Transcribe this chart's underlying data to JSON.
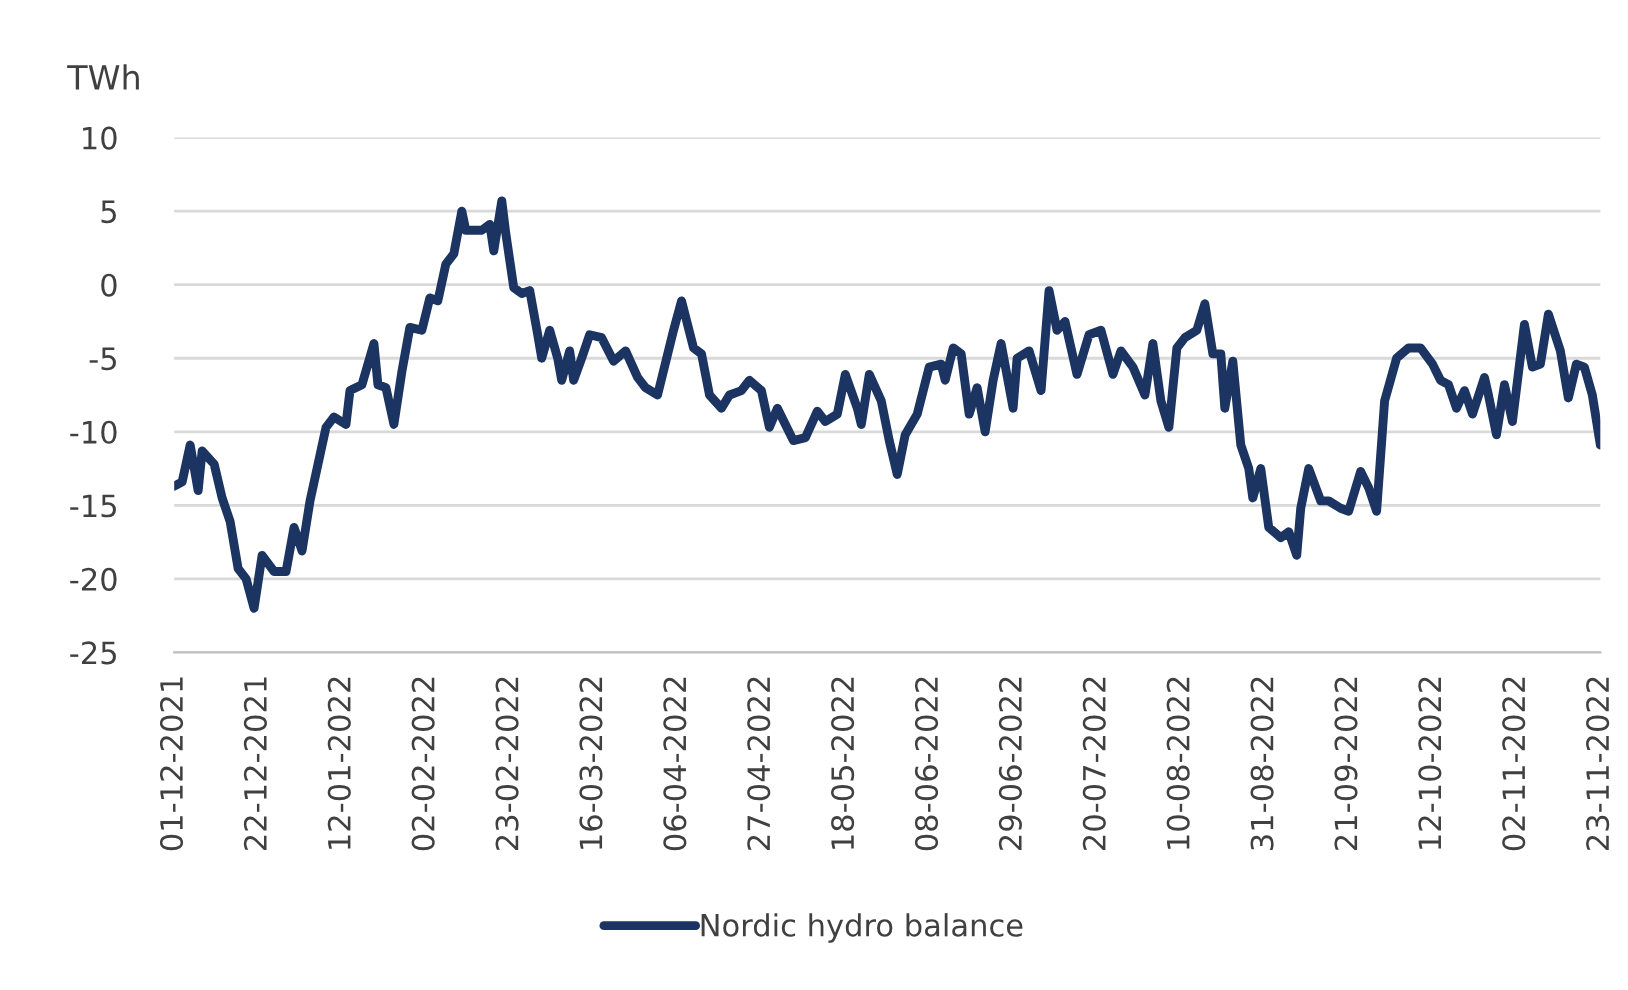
{
  "chart_data": {
    "type": "line",
    "ylabel": "TWh",
    "x": [
      "2021-12-01",
      "2021-12-03",
      "2021-12-05",
      "2021-12-07",
      "2021-12-08",
      "2021-12-11",
      "2021-12-13",
      "2021-12-15",
      "2021-12-17",
      "2021-12-19",
      "2021-12-21",
      "2021-12-23",
      "2021-12-26",
      "2021-12-29",
      "2021-12-31",
      "2022-01-02",
      "2022-01-04",
      "2022-01-08",
      "2022-01-10",
      "2022-01-13",
      "2022-01-14",
      "2022-01-17",
      "2022-01-20",
      "2022-01-21",
      "2022-01-23",
      "2022-01-25",
      "2022-01-27",
      "2022-01-29",
      "2022-02-01",
      "2022-02-03",
      "2022-02-05",
      "2022-02-07",
      "2022-02-09",
      "2022-02-11",
      "2022-02-12",
      "2022-02-16",
      "2022-02-18",
      "2022-02-19",
      "2022-02-21",
      "2022-02-22",
      "2022-02-24",
      "2022-02-26",
      "2022-02-28",
      "2022-03-02",
      "2022-03-03",
      "2022-03-05",
      "2022-03-07",
      "2022-03-08",
      "2022-03-10",
      "2022-03-11",
      "2022-03-13",
      "2022-03-15",
      "2022-03-18",
      "2022-03-21",
      "2022-03-24",
      "2022-03-27",
      "2022-03-29",
      "2022-04-01",
      "2022-04-05",
      "2022-04-07",
      "2022-04-10",
      "2022-04-12",
      "2022-04-14",
      "2022-04-17",
      "2022-04-19",
      "2022-04-22",
      "2022-04-24",
      "2022-04-27",
      "2022-04-29",
      "2022-05-01",
      "2022-05-03",
      "2022-05-05",
      "2022-05-08",
      "2022-05-11",
      "2022-05-13",
      "2022-05-16",
      "2022-05-18",
      "2022-05-21",
      "2022-05-22",
      "2022-05-24",
      "2022-05-27",
      "2022-05-29",
      "2022-05-31",
      "2022-06-02",
      "2022-06-05",
      "2022-06-08",
      "2022-06-11",
      "2022-06-12",
      "2022-06-14",
      "2022-06-16",
      "2022-06-18",
      "2022-06-20",
      "2022-06-22",
      "2022-06-24",
      "2022-06-26",
      "2022-06-29",
      "2022-06-30",
      "2022-07-03",
      "2022-07-06",
      "2022-07-08",
      "2022-07-10",
      "2022-07-12",
      "2022-07-15",
      "2022-07-18",
      "2022-07-21",
      "2022-07-24",
      "2022-07-26",
      "2022-07-29",
      "2022-08-01",
      "2022-08-03",
      "2022-08-05",
      "2022-08-07",
      "2022-08-09",
      "2022-08-11",
      "2022-08-14",
      "2022-08-16",
      "2022-08-18",
      "2022-08-20",
      "2022-08-21",
      "2022-08-23",
      "2022-08-25",
      "2022-08-27",
      "2022-08-28",
      "2022-08-30",
      "2022-09-01",
      "2022-09-04",
      "2022-09-06",
      "2022-09-08",
      "2022-09-09",
      "2022-09-11",
      "2022-09-14",
      "2022-09-16",
      "2022-09-19",
      "2022-09-21",
      "2022-09-24",
      "2022-09-26",
      "2022-09-28",
      "2022-09-30",
      "2022-10-03",
      "2022-10-06",
      "2022-10-09",
      "2022-10-12",
      "2022-10-14",
      "2022-10-16",
      "2022-10-18",
      "2022-10-20",
      "2022-10-22",
      "2022-10-25",
      "2022-10-26",
      "2022-10-28",
      "2022-10-30",
      "2022-11-01",
      "2022-11-04",
      "2022-11-06",
      "2022-11-08",
      "2022-11-10",
      "2022-11-13",
      "2022-11-15",
      "2022-11-17",
      "2022-11-19",
      "2022-11-21",
      "2022-11-23"
    ],
    "series": [
      {
        "name": "Nordic hydro balance",
        "color": "#1c3461",
        "values": [
          -13.7,
          -13.4,
          -10.9,
          -14.0,
          -11.3,
          -12.2,
          -14.5,
          -16.1,
          -19.3,
          -20.0,
          -22.0,
          -18.4,
          -19.5,
          -19.5,
          -16.5,
          -18.1,
          -14.7,
          -9.7,
          -9.0,
          -9.5,
          -7.2,
          -6.8,
          -4.0,
          -6.8,
          -7.0,
          -9.5,
          -5.9,
          -2.9,
          -3.1,
          -0.9,
          -1.1,
          1.4,
          2.1,
          5.0,
          3.7,
          3.7,
          4.1,
          2.3,
          5.7,
          3.5,
          -0.2,
          -0.6,
          -0.4,
          -3.4,
          -5.0,
          -3.1,
          -5.0,
          -6.5,
          -4.5,
          -6.5,
          -5.0,
          -3.4,
          -3.6,
          -5.2,
          -4.5,
          -6.3,
          -7.0,
          -7.5,
          -3.1,
          -1.1,
          -4.3,
          -4.7,
          -7.5,
          -8.4,
          -7.5,
          -7.2,
          -6.5,
          -7.2,
          -9.7,
          -8.4,
          -9.5,
          -10.6,
          -10.4,
          -8.6,
          -9.3,
          -8.8,
          -6.1,
          -8.4,
          -9.5,
          -6.1,
          -7.9,
          -10.6,
          -12.9,
          -10.2,
          -8.8,
          -5.6,
          -5.4,
          -6.5,
          -4.3,
          -4.7,
          -8.8,
          -7.0,
          -10.0,
          -6.5,
          -4.0,
          -8.4,
          -5.0,
          -4.5,
          -7.2,
          -0.4,
          -3.1,
          -2.5,
          -6.1,
          -3.4,
          -3.1,
          -6.1,
          -4.5,
          -5.6,
          -7.5,
          -4.0,
          -7.9,
          -9.7,
          -4.3,
          -3.6,
          -3.1,
          -1.3,
          -4.7,
          -4.7,
          -8.4,
          -5.2,
          -10.9,
          -12.5,
          -14.5,
          -12.5,
          -16.5,
          -17.2,
          -16.8,
          -18.4,
          -15.2,
          -12.5,
          -14.7,
          -14.7,
          -15.2,
          -15.4,
          -12.7,
          -13.8,
          -15.4,
          -7.9,
          -5.0,
          -4.3,
          -4.3,
          -5.4,
          -6.5,
          -6.8,
          -8.4,
          -7.2,
          -8.8,
          -6.3,
          -7.5,
          -10.2,
          -6.8,
          -9.3,
          -2.7,
          -5.6,
          -5.4,
          -2.0,
          -4.5,
          -7.7,
          -5.4,
          -5.6,
          -7.5,
          -10.9
        ]
      }
    ],
    "xlim": [
      "2021-12-01",
      "2022-11-23"
    ],
    "xticks": [
      {
        "value": "2021-12-01",
        "label": "01-12-2021"
      },
      {
        "value": "2021-12-22",
        "label": "22-12-2021"
      },
      {
        "value": "2022-01-12",
        "label": "12-01-2022"
      },
      {
        "value": "2022-02-02",
        "label": "02-02-2022"
      },
      {
        "value": "2022-02-23",
        "label": "23-02-2022"
      },
      {
        "value": "2022-03-16",
        "label": "16-03-2022"
      },
      {
        "value": "2022-04-06",
        "label": "06-04-2022"
      },
      {
        "value": "2022-04-27",
        "label": "27-04-2022"
      },
      {
        "value": "2022-05-18",
        "label": "18-05-2022"
      },
      {
        "value": "2022-06-08",
        "label": "08-06-2022"
      },
      {
        "value": "2022-06-29",
        "label": "29-06-2022"
      },
      {
        "value": "2022-07-20",
        "label": "20-07-2022"
      },
      {
        "value": "2022-08-10",
        "label": "10-08-2022"
      },
      {
        "value": "2022-08-31",
        "label": "31-08-2022"
      },
      {
        "value": "2022-09-21",
        "label": "21-09-2022"
      },
      {
        "value": "2022-10-12",
        "label": "12-10-2022"
      },
      {
        "value": "2022-11-02",
        "label": "02-11-2022"
      },
      {
        "value": "2022-11-23",
        "label": "23-11-2022"
      }
    ],
    "ylim": [
      -25,
      10
    ],
    "yticks": [
      -25,
      -20,
      -15,
      -10,
      -5,
      0,
      5,
      10
    ],
    "grid": "y",
    "legend": "bottom",
    "line_style": "solid",
    "marker": "none"
  }
}
